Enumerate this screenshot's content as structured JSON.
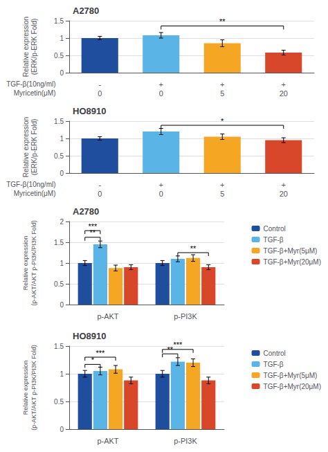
{
  "chart_data": [
    {
      "type": "bar",
      "title": "A2780",
      "categories": [
        "-\n0",
        "+\n0",
        "+\n5",
        "+\n20"
      ],
      "xlabel": "TGF-β(10ng/ml)\nMyricetin(μM)",
      "ylabel": "Relative expression\n(ERK/p-ERK Fold)",
      "values": [
        1.0,
        1.08,
        0.85,
        0.58
      ],
      "errors": [
        0.05,
        0.08,
        0.1,
        0.07
      ],
      "colors": [
        "#1f4e9e",
        "#5ab4e5",
        "#f5a623",
        "#d9472b"
      ],
      "ylim": [
        0,
        1.5
      ],
      "yticks": [
        0,
        0.5,
        1.0,
        1.5
      ],
      "annotations": [
        {
          "text": "**",
          "x1": 1,
          "x2": 3,
          "y": 1.35
        }
      ]
    },
    {
      "type": "bar",
      "title": "HO8910",
      "categories": [
        "-\n0",
        "+\n0",
        "+\n5",
        "+\n20"
      ],
      "xlabel": "TGF-β(10ng/ml)\nMyricetin(μM)",
      "ylabel": "Relative expression\n(ERK/p-ERK Fold)",
      "values": [
        1.0,
        1.2,
        1.05,
        0.95
      ],
      "errors": [
        0.05,
        0.09,
        0.08,
        0.07
      ],
      "colors": [
        "#1f4e9e",
        "#5ab4e5",
        "#f5a623",
        "#d9472b"
      ],
      "ylim": [
        0,
        1.5
      ],
      "yticks": [
        0,
        0.5,
        1.0,
        1.5
      ],
      "annotations": [
        {
          "text": "*",
          "x1": 1,
          "x2": 3,
          "y": 1.38
        }
      ]
    },
    {
      "type": "bar",
      "title": "A2780",
      "categories": [
        "p-AKT",
        "p-PI3K"
      ],
      "ylabel": "Relative expression\n(p-AKT/AKT p-PI3K/PI3K Fold)",
      "series": [
        {
          "name": "Control",
          "color": "#1f4e9e",
          "values": [
            1.0,
            1.0
          ],
          "errors": [
            0.06,
            0.06
          ]
        },
        {
          "name": "TGF-β",
          "color": "#5ab4e5",
          "values": [
            1.45,
            1.1
          ],
          "errors": [
            0.08,
            0.07
          ]
        },
        {
          "name": "TGF-β+Myr(5μM)",
          "color": "#f5a623",
          "values": [
            0.88,
            1.12
          ],
          "errors": [
            0.07,
            0.08
          ]
        },
        {
          "name": "TGF-β+Myr(20μM)",
          "color": "#d9472b",
          "values": [
            0.9,
            0.9
          ],
          "errors": [
            0.06,
            0.06
          ]
        }
      ],
      "ylim": [
        0,
        2.0
      ],
      "yticks": [
        0,
        0.5,
        1.0,
        1.5,
        2.0
      ],
      "legend": "upper right",
      "annotations": [
        {
          "text": "**",
          "category1": 0,
          "series1": 0,
          "category2": 0,
          "series2": 1,
          "y": 1.62
        },
        {
          "text": "***",
          "category1": 0,
          "series1": 0,
          "category2": 0,
          "series2": 1,
          "y": 1.78
        },
        {
          "text": "**",
          "category1": 1,
          "series1": 1,
          "category2": 1,
          "series2": 3,
          "y": 1.25
        }
      ]
    },
    {
      "type": "bar",
      "title": "HO8910",
      "categories": [
        "p-AKT",
        "p-PI3K"
      ],
      "ylabel": "Relative expression\n(p-AKT/AKT p-PI3K/PI3K Fold)",
      "series": [
        {
          "name": "Control",
          "color": "#1f4e9e",
          "values": [
            1.0,
            1.0
          ],
          "errors": [
            0.06,
            0.06
          ]
        },
        {
          "name": "TGF-β",
          "color": "#5ab4e5",
          "values": [
            1.05,
            1.22
          ],
          "errors": [
            0.07,
            0.07
          ]
        },
        {
          "name": "TGF-β+Myr(5μM)",
          "color": "#f5a623",
          "values": [
            1.08,
            1.2
          ],
          "errors": [
            0.07,
            0.07
          ]
        },
        {
          "name": "TGF-β+Myr(20μM)",
          "color": "#d9472b",
          "values": [
            0.88,
            0.88
          ],
          "errors": [
            0.06,
            0.06
          ]
        }
      ],
      "ylim": [
        0,
        1.5
      ],
      "yticks": [
        0,
        0.5,
        1.0,
        1.5
      ],
      "legend": "upper right",
      "annotations": [
        {
          "text": "*",
          "category1": 0,
          "series1": 0,
          "category2": 0,
          "series2": 1,
          "y": 1.17
        },
        {
          "text": "***",
          "category1": 0,
          "series1": 0,
          "category2": 0,
          "series2": 2,
          "y": 1.3
        },
        {
          "text": "**",
          "category1": 1,
          "series1": 0,
          "category2": 1,
          "series2": 1,
          "y": 1.36
        },
        {
          "text": "***",
          "category1": 1,
          "series1": 0,
          "category2": 1,
          "series2": 2,
          "y": 1.44
        }
      ]
    }
  ]
}
